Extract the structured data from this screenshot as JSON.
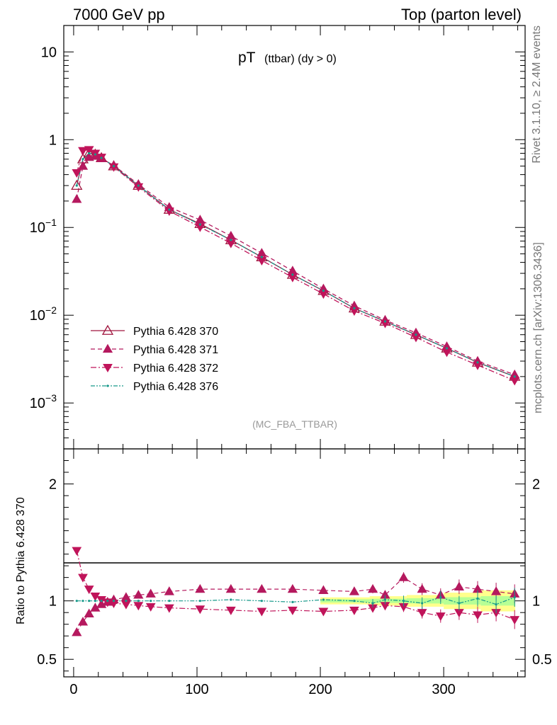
{
  "header": {
    "left": "7000 GeV pp",
    "right": "Top (parton level)"
  },
  "side_text": {
    "rivet": "Rivet 3.1.10, ≥ 2.4M events",
    "mcplots": "mcplots.cern.ch [arXiv:1306.3436]"
  },
  "chart_data": [
    {
      "type": "scatter",
      "title_main": "pT",
      "title_sub": "(ttbar) (dy > 0)",
      "watermark": "(MC_FBA_TTBAR)",
      "yscale": "log",
      "xlim": [
        -8,
        366
      ],
      "ylim": [
        0.0003,
        20
      ],
      "x_ticks": [
        "0",
        "100",
        "200",
        "300"
      ],
      "y_ticks": [
        "10−3",
        "10−2",
        "10−1",
        "1",
        "10"
      ],
      "legend_position": "bottom-left",
      "x": [
        2.5,
        7.5,
        12.5,
        17.5,
        22.5,
        32.5,
        52.5,
        77.5,
        102.5,
        127.5,
        152.5,
        177.5,
        202.5,
        227.5,
        252.5,
        277.5,
        302.5,
        327.5,
        357.5
      ],
      "series": [
        {
          "name": "Pythia 6.428 370",
          "color": "#a0153e",
          "marker": "open-triangle-up",
          "line": "solid",
          "values": [
            0.3,
            0.6,
            0.7,
            0.68,
            0.62,
            0.5,
            0.3,
            0.16,
            0.11,
            0.072,
            0.046,
            0.029,
            0.019,
            0.012,
            0.0085,
            0.006,
            0.0042,
            0.0029,
            0.002
          ]
        },
        {
          "name": "Pythia 6.428 371",
          "color": "#b5195e",
          "marker": "filled-triangle-up",
          "line": "dashed",
          "values": [
            0.21,
            0.5,
            0.63,
            0.65,
            0.61,
            0.51,
            0.31,
            0.17,
            0.122,
            0.08,
            0.051,
            0.032,
            0.02,
            0.0128,
            0.0088,
            0.0063,
            0.0044,
            0.003,
            0.0021
          ]
        },
        {
          "name": "Pythia 6.428 372",
          "color": "#c0145a",
          "marker": "filled-triangle-down",
          "line": "dashdot",
          "values": [
            0.42,
            0.75,
            0.77,
            0.7,
            0.63,
            0.49,
            0.29,
            0.154,
            0.101,
            0.066,
            0.042,
            0.027,
            0.0175,
            0.0112,
            0.0081,
            0.0056,
            0.0038,
            0.0027,
            0.0018
          ]
        },
        {
          "name": "Pythia 6.428 376",
          "color": "#17998a",
          "marker": "dot",
          "line": "dashdotdot",
          "values": [
            0.3,
            0.6,
            0.7,
            0.68,
            0.62,
            0.5,
            0.3,
            0.16,
            0.108,
            0.072,
            0.046,
            0.029,
            0.019,
            0.012,
            0.0085,
            0.006,
            0.0042,
            0.0029,
            0.002
          ]
        }
      ]
    },
    {
      "type": "scatter",
      "ylabel": "Ratio to Pythia 6.428 370",
      "xlim": [
        -8,
        366
      ],
      "ylim": [
        0.35,
        2.3
      ],
      "x_ticks": [
        "0",
        "100",
        "200",
        "300"
      ],
      "y_ticks": [
        "0.5",
        "1",
        "2"
      ],
      "band_color": "#ffff8c",
      "band_color_inner": "#99ff99",
      "x": [
        2.5,
        7.5,
        12.5,
        17.5,
        22.5,
        27.5,
        32.5,
        42.5,
        52.5,
        62.5,
        77.5,
        102.5,
        127.5,
        152.5,
        177.5,
        202.5,
        227.5,
        242.5,
        252.5,
        267.5,
        282.5,
        297.5,
        312.5,
        327.5,
        342.5,
        357.5
      ],
      "series": [
        {
          "name": "Pythia 6.428 371",
          "values": [
            0.73,
            0.82,
            0.89,
            0.94,
            0.97,
            0.99,
            1.01,
            1.03,
            1.05,
            1.06,
            1.08,
            1.1,
            1.1,
            1.1,
            1.1,
            1.09,
            1.08,
            1.1,
            1.05,
            1.2,
            1.1,
            1.05,
            1.12,
            1.1,
            1.08,
            1.06
          ]
        },
        {
          "name": "Pythia 6.428 372",
          "values": [
            1.43,
            1.2,
            1.1,
            1.04,
            1.01,
            0.99,
            0.98,
            0.97,
            0.96,
            0.95,
            0.94,
            0.93,
            0.92,
            0.91,
            0.92,
            0.91,
            0.92,
            0.94,
            0.96,
            0.95,
            0.9,
            0.87,
            0.9,
            0.88,
            0.9,
            0.84
          ]
        },
        {
          "name": "Pythia 6.428 376",
          "values": [
            1.0,
            1.0,
            1.0,
            1.0,
            1.0,
            1.0,
            1.0,
            1.0,
            1.0,
            1.0,
            1.0,
            1.0,
            1.01,
            1.0,
            0.99,
            1.01,
            1.0,
            0.98,
            1.01,
            1.0,
            0.98,
            1.03,
            0.98,
            1.02,
            0.97,
            1.03
          ]
        }
      ]
    }
  ]
}
